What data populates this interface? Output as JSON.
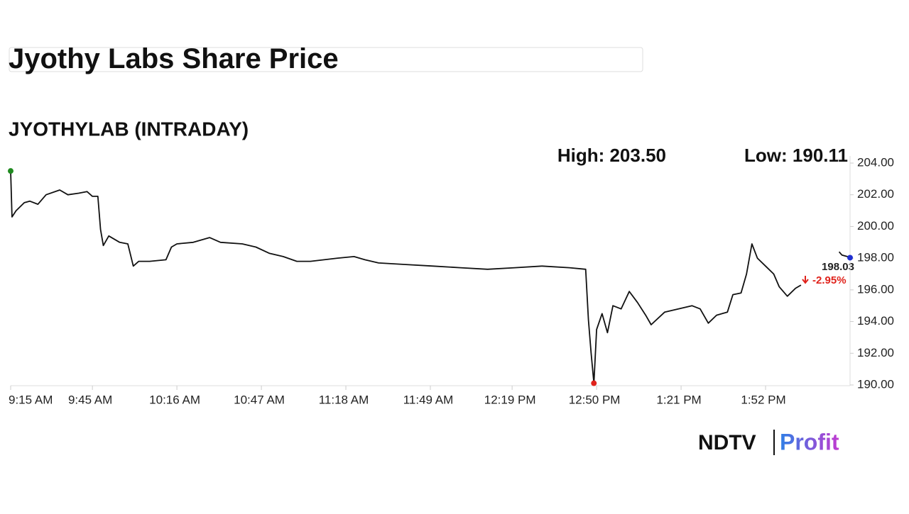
{
  "chart_data": {
    "type": "line",
    "title": "Jyothy Labs Share Price",
    "subtitle": "JYOTHYLAB (INTRADAY)",
    "high_label": "High: 203.50",
    "low_label": "Low: 190.11",
    "last_label": "198.03",
    "change_label": "-2.95%",
    "change_color": "#e0231c",
    "marker_colors": {
      "high": "#1f8a1f",
      "low": "#e0231c",
      "last": "#1f2fd0"
    },
    "x": [
      555,
      555.5,
      557,
      560,
      562,
      565,
      568,
      573,
      576,
      580,
      583,
      585,
      587,
      588,
      589,
      591,
      595,
      598,
      600,
      602,
      606,
      612,
      614,
      616,
      622,
      628,
      632,
      640,
      645,
      650,
      655,
      660,
      665,
      675,
      681,
      685,
      690,
      700,
      710,
      720,
      730,
      740,
      750,
      760,
      766,
      767,
      768,
      769,
      770,
      772,
      774,
      776,
      779,
      782,
      785,
      788,
      790,
      795,
      800,
      805,
      808,
      811,
      814,
      818,
      820,
      823,
      825,
      827,
      829,
      832,
      835,
      837,
      840,
      843,
      845,
      852,
      859,
      860,
      862,
      863
    ],
    "series": [
      {
        "name": "JYOTHYLAB",
        "color": "#111111",
        "values": [
          203.5,
          200.6,
          201.0,
          201.5,
          201.6,
          201.4,
          202.0,
          202.3,
          202.0,
          202.1,
          202.2,
          201.9,
          201.9,
          199.8,
          198.8,
          199.4,
          199.0,
          198.9,
          197.5,
          197.8,
          197.8,
          197.9,
          198.7,
          198.9,
          199.0,
          199.3,
          199.0,
          198.9,
          198.7,
          198.3,
          198.1,
          197.8,
          197.8,
          198.0,
          198.1,
          197.9,
          197.7,
          197.6,
          197.5,
          197.4,
          197.3,
          197.4,
          197.5,
          197.4,
          197.3,
          194.1,
          192.0,
          190.11,
          193.5,
          194.5,
          193.3,
          195.0,
          194.8,
          195.9,
          195.2,
          194.4,
          193.8,
          194.6,
          194.8,
          195.0,
          194.8,
          193.9,
          194.4,
          194.6,
          195.7,
          195.8,
          197.0,
          198.9,
          198.0,
          197.5,
          197.0,
          196.2,
          195.6,
          196.1,
          196.3,
          null,
          198.4,
          198.2,
          198.1,
          198.03
        ]
      }
    ],
    "xlim": [
      555,
      863
    ],
    "xticks": [
      {
        "value": 555,
        "label": "9:15 AM"
      },
      {
        "value": 585,
        "label": "9:45 AM"
      },
      {
        "value": 616,
        "label": "10:16 AM"
      },
      {
        "value": 647,
        "label": "10:47 AM"
      },
      {
        "value": 678,
        "label": "11:18 AM"
      },
      {
        "value": 709,
        "label": "11:49 AM"
      },
      {
        "value": 739,
        "label": "12:19 PM"
      },
      {
        "value": 770,
        "label": "12:50 PM"
      },
      {
        "value": 801,
        "label": "1:21 PM"
      },
      {
        "value": 832,
        "label": "1:52 PM"
      }
    ],
    "ylim": [
      190,
      204
    ],
    "yticks": [
      {
        "value": 190,
        "label": "190.00"
      },
      {
        "value": 192,
        "label": "192.00"
      },
      {
        "value": 194,
        "label": "194.00"
      },
      {
        "value": 196,
        "label": "196.00"
      },
      {
        "value": 198,
        "label": "198.00"
      },
      {
        "value": 200,
        "label": "200.00"
      },
      {
        "value": 202,
        "label": "202.00"
      },
      {
        "value": 204,
        "label": "204.00"
      }
    ]
  },
  "brand": {
    "left": "NDTV",
    "right": "Profit"
  }
}
